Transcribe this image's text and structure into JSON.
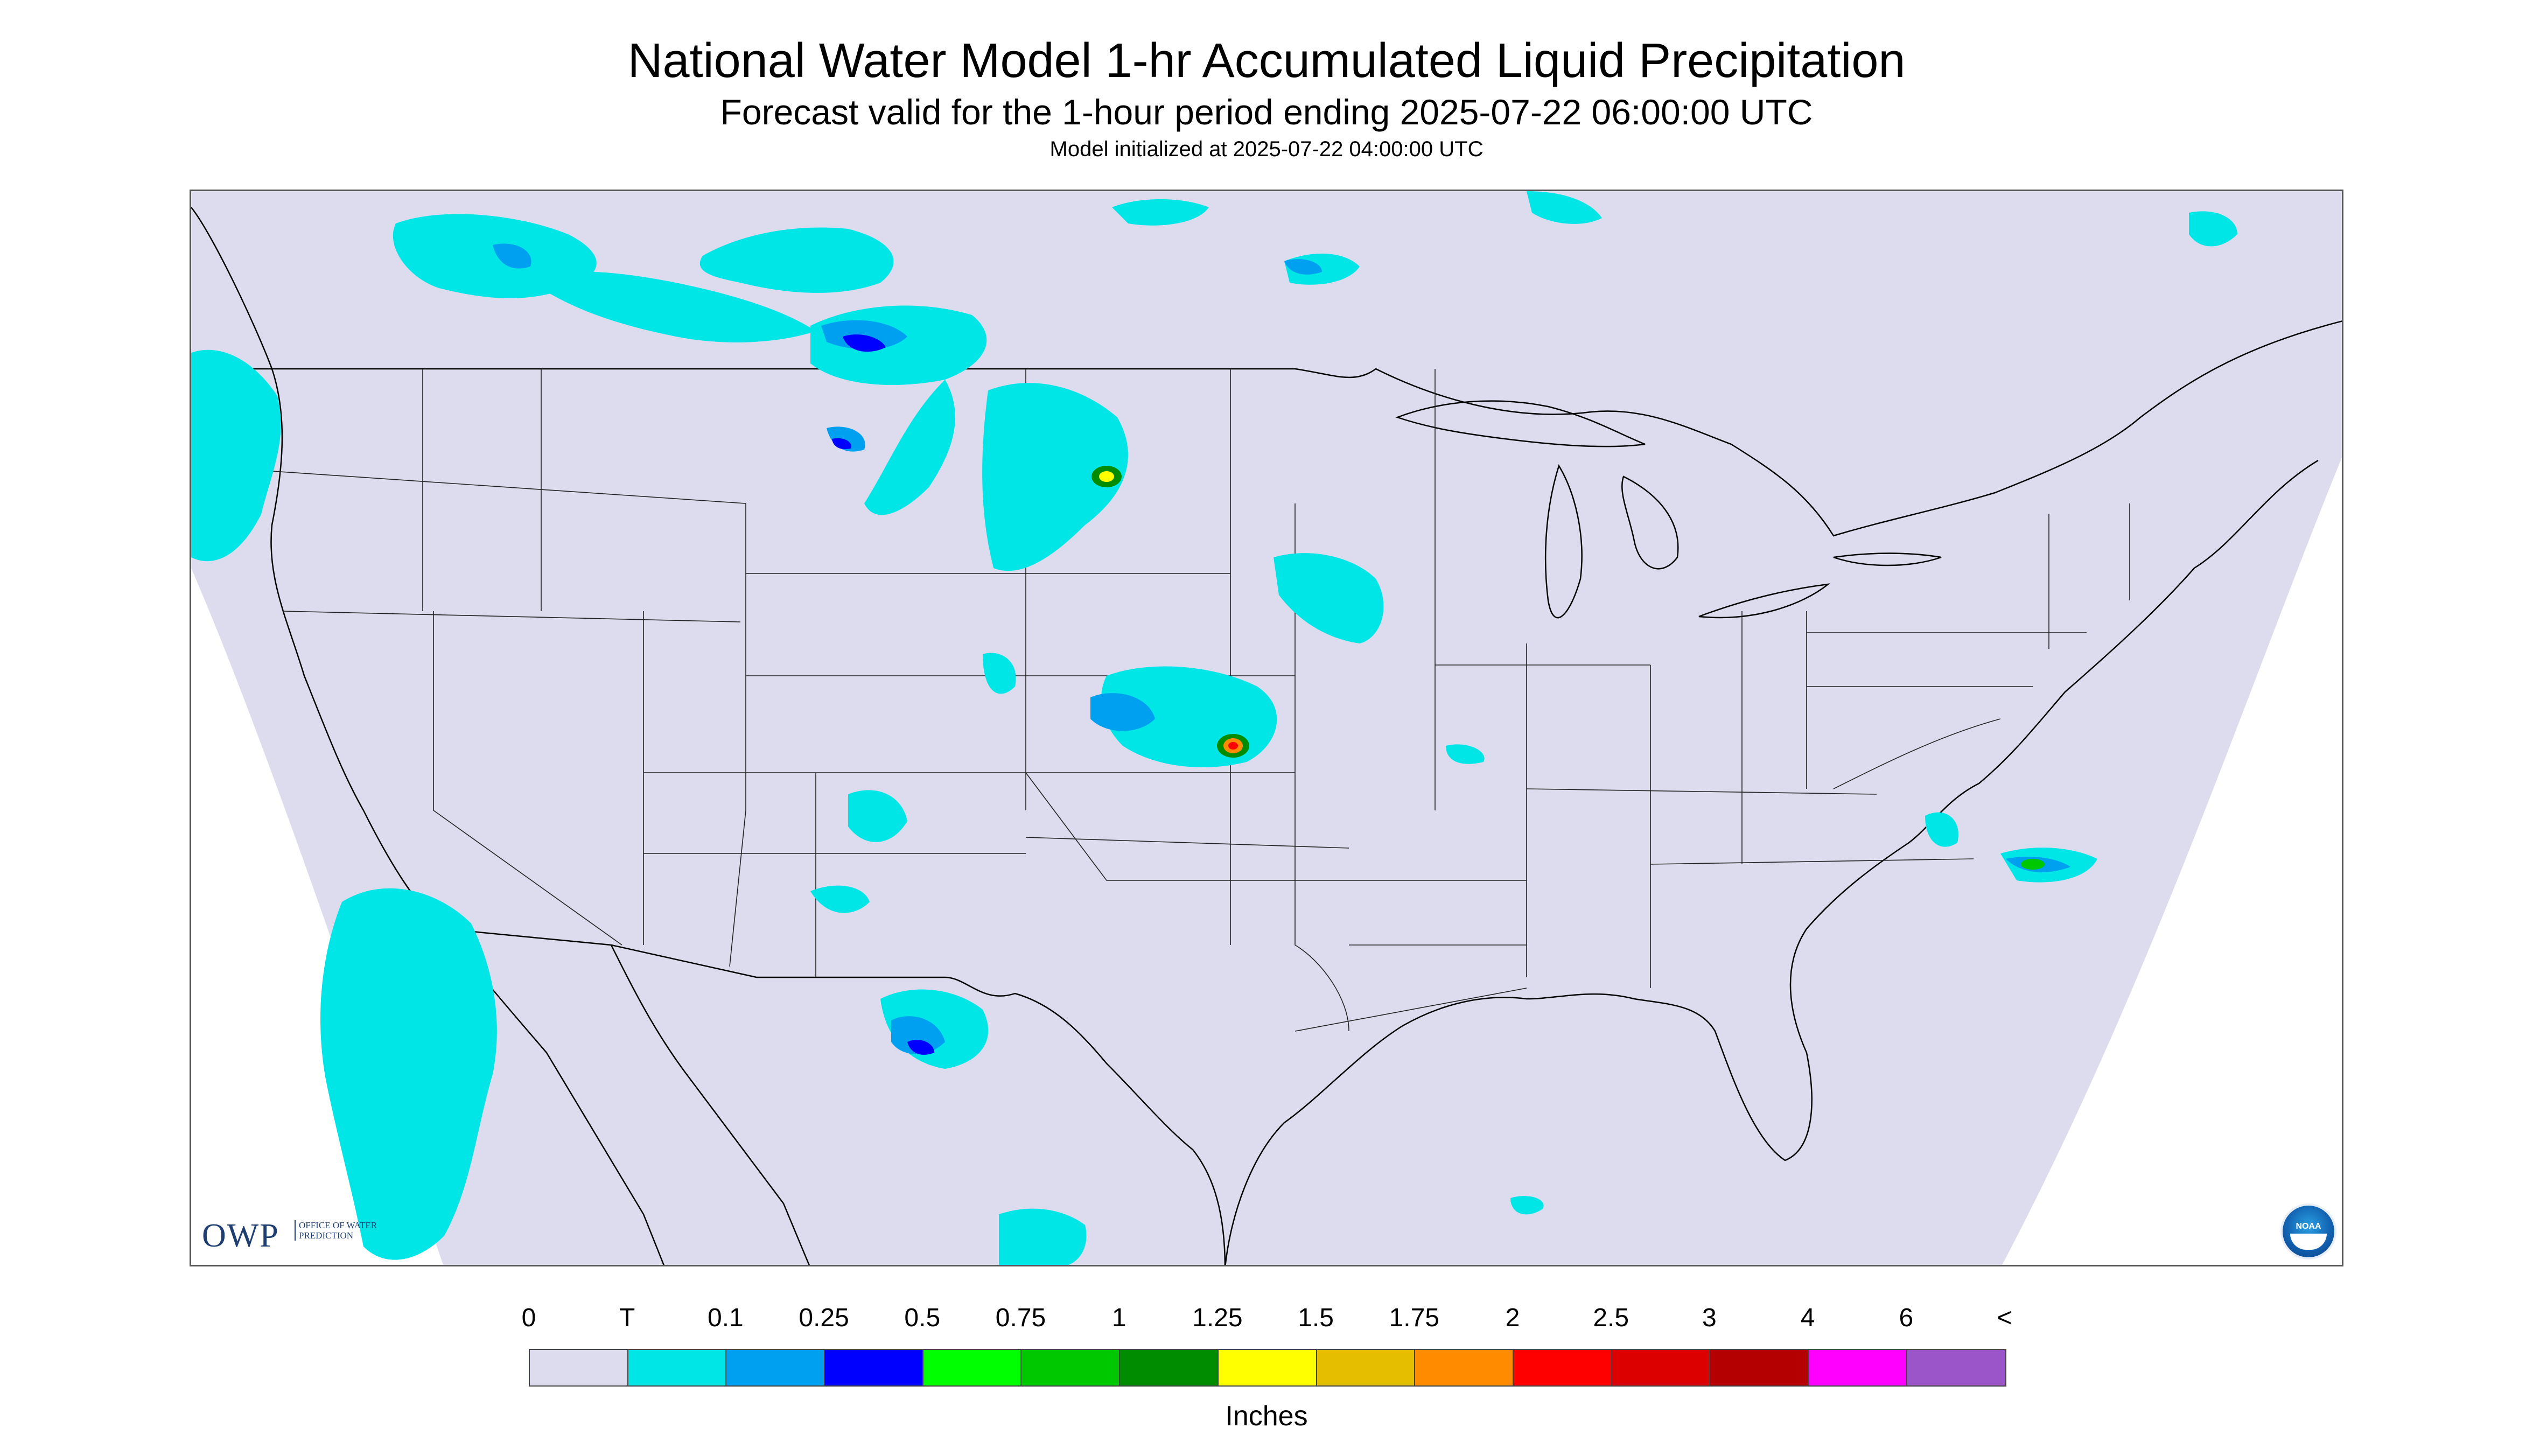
{
  "header": {
    "title": "National Water Model 1-hr Accumulated Liquid Precipitation",
    "subtitle": "Forecast valid for the 1-hour period ending 2025-07-22 06:00:00 UTC",
    "init_note": "Model initialized at 2025-07-22 04:00:00 UTC"
  },
  "map": {
    "background_color": "#dcdcee",
    "outside_domain_color": "#ffffff",
    "boundary_color": "#000000",
    "domain": "CONUS"
  },
  "logos": {
    "owp_mark": "OWP",
    "owp_text": "OFFICE OF WATER PREDICTION",
    "noaa_label": "NOAA"
  },
  "legend": {
    "labels": [
      "0",
      "T",
      "0.1",
      "0.25",
      "0.5",
      "0.75",
      "1",
      "1.25",
      "1.5",
      "1.75",
      "2",
      "2.5",
      "3",
      "4",
      "6",
      "<"
    ],
    "colors": [
      "#dcdcee",
      "#00e6e6",
      "#00a0f0",
      "#0000ff",
      "#00ff00",
      "#00c800",
      "#008c00",
      "#ffff00",
      "#e6be00",
      "#ff8c00",
      "#ff0000",
      "#dc0000",
      "#b40000",
      "#ff00ff",
      "#9b55c8"
    ],
    "units": "Inches"
  }
}
